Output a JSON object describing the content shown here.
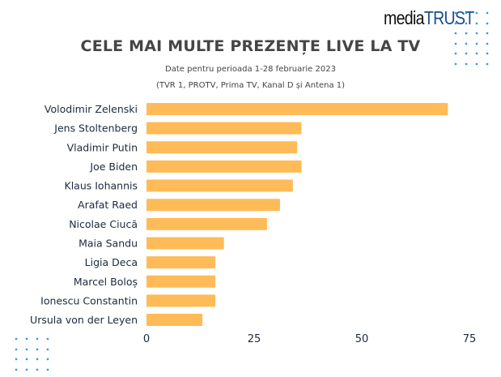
{
  "logo": {
    "part1": "media",
    "part2": "TRUST"
  },
  "colors": {
    "bar": "#ffbb58",
    "text": "#1b2a3d",
    "title": "#454545",
    "dots": "#3a9ad9",
    "logo_accent": "#1b4d8c"
  },
  "chart_data": {
    "type": "bar",
    "orientation": "horizontal",
    "title": "CELE MAI MULTE PREZENȚE LIVE LA TV",
    "subtitle_lines": [
      "Date pentru perioada 1-28 februarie 2023",
      "(TVR 1, PROTV, Prima TV, Kanal D și Antena 1)"
    ],
    "categories": [
      "Volodimir Zelenski",
      "Jens Stoltenberg",
      "Vladimir Putin",
      "Joe Biden",
      "Klaus Iohannis",
      "Arafat Raed",
      "Nicolae Ciucă",
      "Maia Sandu",
      "Ligia Deca",
      "Marcel Boloș",
      "Ionescu Constantin",
      "Ursula von der Leyen"
    ],
    "values": [
      70,
      36,
      35,
      36,
      34,
      31,
      28,
      18,
      16,
      16,
      16,
      13
    ],
    "xlim": [
      0,
      75
    ],
    "xticks": [
      0,
      25,
      50,
      75
    ],
    "xtick_labels": [
      "0",
      "25",
      "50",
      "75"
    ],
    "xlabel": "",
    "ylabel": "",
    "grid": false,
    "legend": "none"
  }
}
